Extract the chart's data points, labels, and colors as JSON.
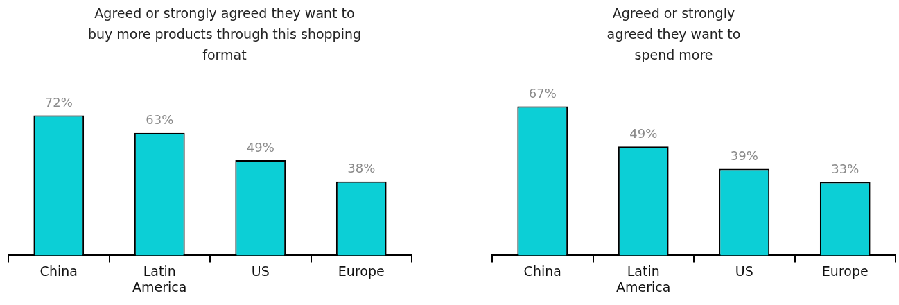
{
  "chart_data": [
    {
      "type": "bar",
      "title": "Agreed or strongly agreed they want to buy more products through this shopping format",
      "categories": [
        "China",
        "Latin America",
        "US",
        "Europe"
      ],
      "values": [
        72,
        63,
        49,
        38
      ],
      "value_labels": [
        "72%",
        "63%",
        "49%",
        "38%"
      ],
      "color": "#0ccfd6",
      "grid": false,
      "legend": false
    },
    {
      "type": "bar",
      "title": "Agreed or strongly agreed they want to spend more",
      "categories": [
        "China",
        "Latin America",
        "US",
        "Europe"
      ],
      "values": [
        67,
        49,
        39,
        33
      ],
      "value_labels": [
        "67%",
        "49%",
        "39%",
        "33%"
      ],
      "color": "#0ccfd6",
      "grid": false,
      "legend": false
    }
  ]
}
